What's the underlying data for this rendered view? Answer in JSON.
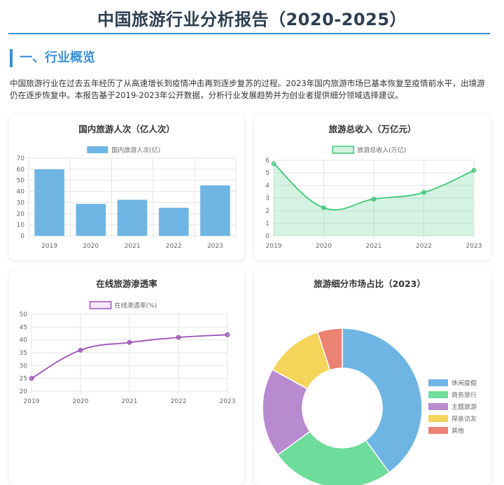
{
  "report": {
    "title": "中国旅游行业分析报告（2020-2025）",
    "section_heading": "一、行业概览",
    "intro": "中国旅游行业在过去五年经历了从高速增长到疫情冲击再到逐步复苏的过程。2023年国内旅游市场已基本恢复至疫情前水平，出境游仍在逐步恢复中。本报告基于2019-2023年公开数据，分析行业发展趋势并为创业者提供细分领域选择建议。"
  },
  "chart_data": [
    {
      "type": "bar",
      "title": "国内旅游人次（亿人次）",
      "categories": [
        "2019",
        "2020",
        "2021",
        "2022",
        "2023"
      ],
      "series": [
        {
          "name": "国内旅游人次(亿)",
          "values": [
            60,
            28.8,
            32.5,
            25.3,
            45.5
          ],
          "color": "#6fb5e4"
        }
      ],
      "ylim": [
        0,
        70
      ],
      "yticks": [
        0,
        10,
        20,
        30,
        40,
        50,
        60,
        70
      ],
      "grid": true,
      "legend": "top-center"
    },
    {
      "type": "area",
      "title": "旅游总收入（万亿元）",
      "categories": [
        "2019",
        "2020",
        "2021",
        "2022",
        "2023"
      ],
      "series": [
        {
          "name": "旅游总收入(万亿)",
          "values": [
            5.73,
            2.23,
            2.92,
            3.45,
            5.2
          ],
          "color": "#3ec87a"
        }
      ],
      "ylim": [
        0,
        6
      ],
      "yticks": [
        0,
        1,
        2,
        3,
        4,
        5,
        6
      ],
      "grid": true,
      "legend": "top-center"
    },
    {
      "type": "line",
      "title": "在线旅游渗透率",
      "categories": [
        "2019",
        "2020",
        "2021",
        "2022",
        "2023"
      ],
      "series": [
        {
          "name": "在线渗透率(%)",
          "values": [
            25,
            36,
            39,
            41,
            42
          ],
          "color": "#9b4fb8"
        }
      ],
      "ylim": [
        20,
        50
      ],
      "yticks": [
        20,
        25,
        30,
        35,
        40,
        45,
        50
      ],
      "grid": true,
      "legend": "top-center"
    },
    {
      "type": "pie",
      "title": "旅游细分市场占比（2023）",
      "labels": [
        "休闲度假",
        "商务旅行",
        "主题旅游",
        "探亲访友",
        "其他"
      ],
      "values": [
        40,
        25,
        18,
        12,
        5
      ],
      "colors": [
        "#6fb5e4",
        "#6edc9a",
        "#b88bd0",
        "#f4d55a",
        "#ec8273"
      ],
      "legend": "right"
    }
  ]
}
